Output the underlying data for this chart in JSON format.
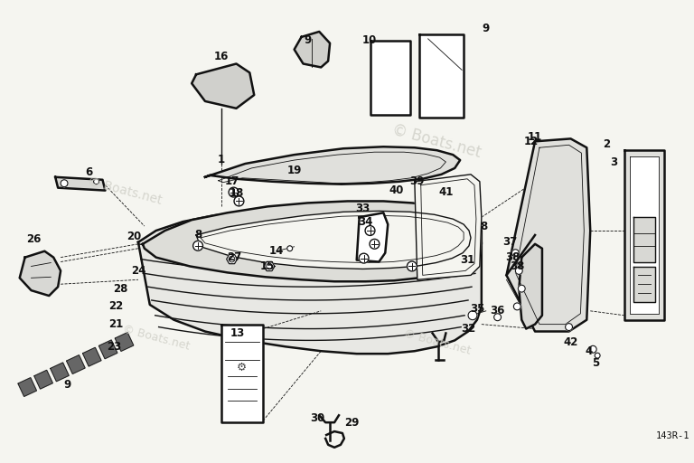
{
  "background_color": "#f5f5f0",
  "diagram_ref": "143R-1",
  "watermark1": "© Boats.net",
  "watermark2": "© Boats.net",
  "fig_width": 7.68,
  "fig_height": 5.12,
  "dpi": 100,
  "line_color": "#111111",
  "label_fontsize": 8.5,
  "ref_fontsize": 7.5,
  "watermark_color": "#d0d0c8",
  "watermark_rotation": -15,
  "watermark_fontsize": 10
}
